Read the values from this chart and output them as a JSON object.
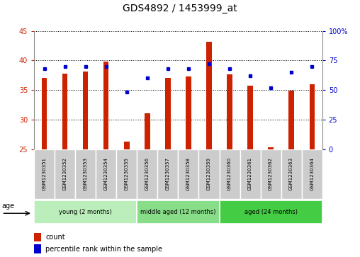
{
  "title": "GDS4892 / 1453999_at",
  "samples": [
    "GSM1230351",
    "GSM1230352",
    "GSM1230353",
    "GSM1230354",
    "GSM1230355",
    "GSM1230356",
    "GSM1230357",
    "GSM1230358",
    "GSM1230359",
    "GSM1230360",
    "GSM1230361",
    "GSM1230362",
    "GSM1230363",
    "GSM1230364"
  ],
  "counts": [
    37.1,
    37.8,
    38.1,
    39.8,
    26.3,
    31.0,
    37.0,
    37.3,
    43.2,
    37.6,
    35.7,
    25.3,
    34.9,
    36.0
  ],
  "percentiles": [
    68,
    70,
    70,
    70,
    48,
    60,
    68,
    68,
    72,
    68,
    62,
    52,
    65,
    70
  ],
  "ylim_left": [
    25,
    45
  ],
  "ylim_right": [
    0,
    100
  ],
  "yticks_left": [
    25,
    30,
    35,
    40,
    45
  ],
  "yticks_right": [
    0,
    25,
    50,
    75,
    100
  ],
  "bar_color": "#cc2200",
  "dot_color": "#0000cc",
  "bar_width": 0.25,
  "group_defs": [
    {
      "label": "young (2 months)",
      "start": 0,
      "end": 5,
      "fill": "#bbeebb"
    },
    {
      "label": "middle aged (12 months)",
      "start": 5,
      "end": 9,
      "fill": "#88dd88"
    },
    {
      "label": "aged (24 months)",
      "start": 9,
      "end": 14,
      "fill": "#44cc44"
    }
  ],
  "sample_box_color": "#cccccc",
  "legend_count_label": "count",
  "legend_percentile_label": "percentile rank within the sample",
  "tick_fontsize": 7,
  "title_fontsize": 10
}
